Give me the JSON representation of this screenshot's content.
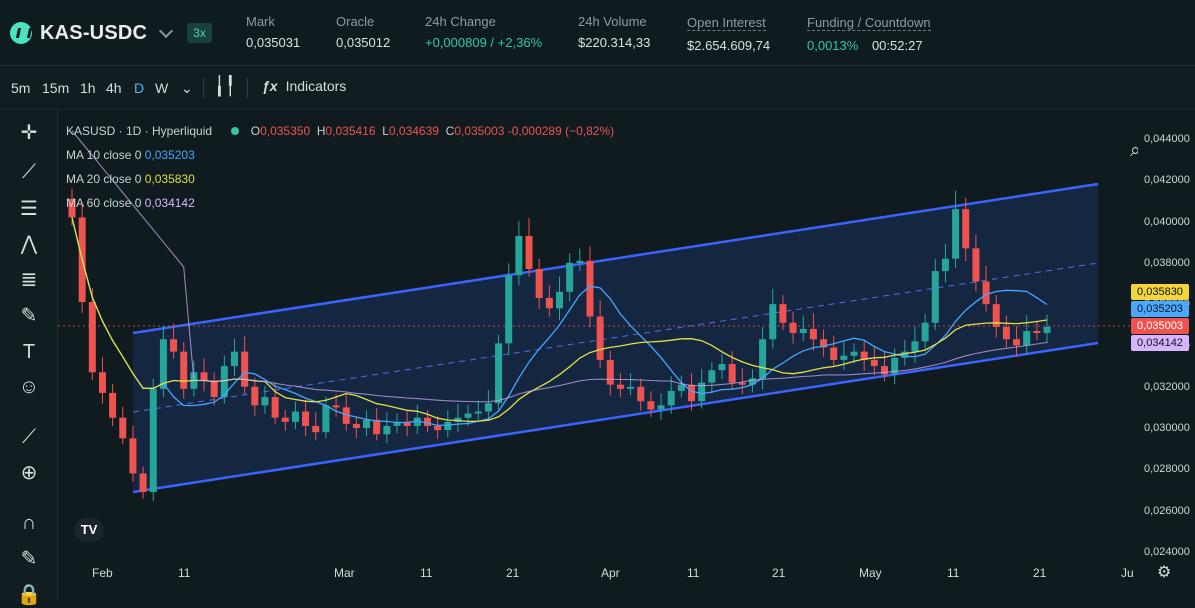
{
  "header": {
    "symbol": "KAS-USDC",
    "leverage": "3x",
    "stats": [
      {
        "label": "Mark",
        "value": "0,035031"
      },
      {
        "label": "Oracle",
        "value": "0,035012"
      },
      {
        "label": "24h Change",
        "value": "+0,000809 / +2,36%",
        "green": true
      },
      {
        "label": "24h Volume",
        "value": "$220.314,33"
      },
      {
        "label": "Open Interest",
        "value": "$2.654.609,74"
      },
      {
        "label": "Funding / Countdown",
        "value": "0,0013%",
        "value2": "00:52:27",
        "green": true
      }
    ]
  },
  "toolbar": {
    "timeframes": [
      "5m",
      "15m",
      "1h",
      "4h",
      "D",
      "W"
    ],
    "active": "D",
    "indicators_label": "Indicators"
  },
  "legend": {
    "title": "KASUSD · 1D · Hyperliquid",
    "ohlc": {
      "o": "0,035350",
      "h": "0,035416",
      "l": "0,034639",
      "c": "0,035003",
      "chg": "-0,000289 (−0,82%)"
    },
    "ma": [
      {
        "label": "MA 10 close 0",
        "value": "0,035203",
        "color": "#45a6ff"
      },
      {
        "label": "MA 20 close 0",
        "value": "0,035830",
        "color": "#e2df45"
      },
      {
        "label": "MA 60 close 0",
        "value": "0,034142",
        "color": "#d8b5ff"
      }
    ]
  },
  "axis": {
    "y_ticks": [
      "0,044000",
      "0,042000",
      "0,040000",
      "0,038000",
      "0,036000",
      "0,034000",
      "0,032000",
      "0,030000",
      "0,028000",
      "0,026000",
      "0,024000"
    ],
    "x_ticks": [
      "Feb",
      "11",
      "Mar",
      "11",
      "21",
      "Apr",
      "11",
      "21",
      "May",
      "11",
      "21",
      "Ju"
    ],
    "price_badges": [
      {
        "value": "0,035830",
        "color": "#f2d43d"
      },
      {
        "value": "0,035203",
        "color": "#4aa8ff"
      },
      {
        "value": "0,035003",
        "color": "#ef5350"
      },
      {
        "value": "0,034142",
        "color": "#d6b4ff"
      }
    ]
  },
  "chart_data": {
    "type": "candlestick",
    "title": "KASUSD · 1D · Hyperliquid",
    "xlabel": "",
    "ylabel": "",
    "ylim": [
      0.024,
      0.0445
    ],
    "x_ticks": [
      "Feb",
      "11",
      "Mar",
      "11",
      "21",
      "Apr",
      "11",
      "21",
      "May",
      "11",
      "21",
      "Ju"
    ],
    "series": [
      {
        "values": [
          0.0403,
          0.0362,
          0.0328,
          0.0318,
          0.0306,
          0.0296,
          0.0279,
          0.027,
          0.032,
          0.0344,
          0.0338,
          0.032,
          0.0328,
          0.0324,
          0.0316,
          0.0331,
          0.0338,
          0.0321,
          0.0312,
          0.0316,
          0.0306,
          0.0304,
          0.0309,
          0.0302,
          0.0299,
          0.0312,
          0.0311,
          0.0303,
          0.0301,
          0.0305,
          0.0298,
          0.0302,
          0.0304,
          0.0302,
          0.0306,
          0.0302,
          0.03,
          0.0304,
          0.0306,
          0.0308,
          0.0309,
          0.0313,
          0.0342,
          0.0375,
          0.0394,
          0.0378,
          0.0364,
          0.0359,
          0.0367,
          0.0381,
          0.0382,
          0.0355,
          0.0334,
          0.0322,
          0.032,
          0.0321,
          0.0314,
          0.031,
          0.0312,
          0.0319,
          0.0322,
          0.0314,
          0.0323,
          0.0329,
          0.0332,
          0.0323,
          0.0322,
          0.0325,
          0.0344,
          0.0361,
          0.0352,
          0.0347,
          0.0349,
          0.0344,
          0.034,
          0.0334,
          0.0336,
          0.0338,
          0.0334,
          0.0331,
          0.0327,
          0.0335,
          0.0338,
          0.0343,
          0.0352,
          0.0377,
          0.0383,
          0.0407,
          0.0388,
          0.0372,
          0.0361,
          0.035,
          0.0344,
          0.0341,
          0.0348,
          0.0347,
          0.035
        ]
      }
    ]
  }
}
